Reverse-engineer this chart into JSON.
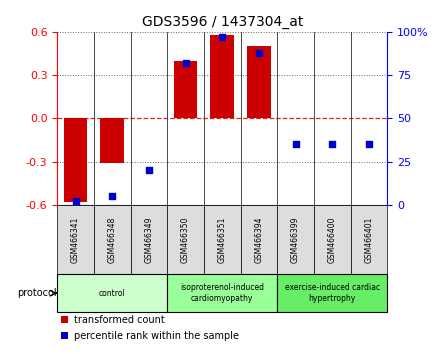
{
  "title": "GDS3596 / 1437304_at",
  "samples": [
    "GSM466341",
    "GSM466348",
    "GSM466349",
    "GSM466350",
    "GSM466351",
    "GSM466394",
    "GSM466399",
    "GSM466400",
    "GSM466401"
  ],
  "bar_values": [
    -0.58,
    -0.31,
    0.0,
    0.4,
    0.58,
    0.5,
    0.0,
    0.0,
    0.0
  ],
  "dot_values": [
    2,
    5,
    20,
    82,
    97,
    88,
    35,
    35,
    35
  ],
  "ylim_left": [
    -0.6,
    0.6
  ],
  "ylim_right": [
    0,
    100
  ],
  "yticks_left": [
    -0.6,
    -0.3,
    0.0,
    0.3,
    0.6
  ],
  "yticks_right": [
    0,
    25,
    50,
    75,
    100
  ],
  "ytick_labels_right": [
    "0",
    "25",
    "50",
    "75",
    "100%"
  ],
  "bar_color": "#CC0000",
  "dot_color": "#0000CC",
  "zero_line_color": "#CC0000",
  "grid_color": "#000000",
  "bg_color": "#FFFFFF",
  "protocol_groups": [
    {
      "label": "control",
      "start": 0,
      "end": 2,
      "color": "#CCFFCC"
    },
    {
      "label": "isoproterenol-induced\ncardiomyopathy",
      "start": 3,
      "end": 5,
      "color": "#99FF99"
    },
    {
      "label": "exercise-induced cardiac\nhypertrophy",
      "start": 6,
      "end": 8,
      "color": "#66EE66"
    }
  ],
  "legend_items": [
    {
      "label": "transformed count",
      "color": "#CC0000"
    },
    {
      "label": "percentile rank within the sample",
      "color": "#0000CC"
    }
  ],
  "protocol_label": "protocol"
}
